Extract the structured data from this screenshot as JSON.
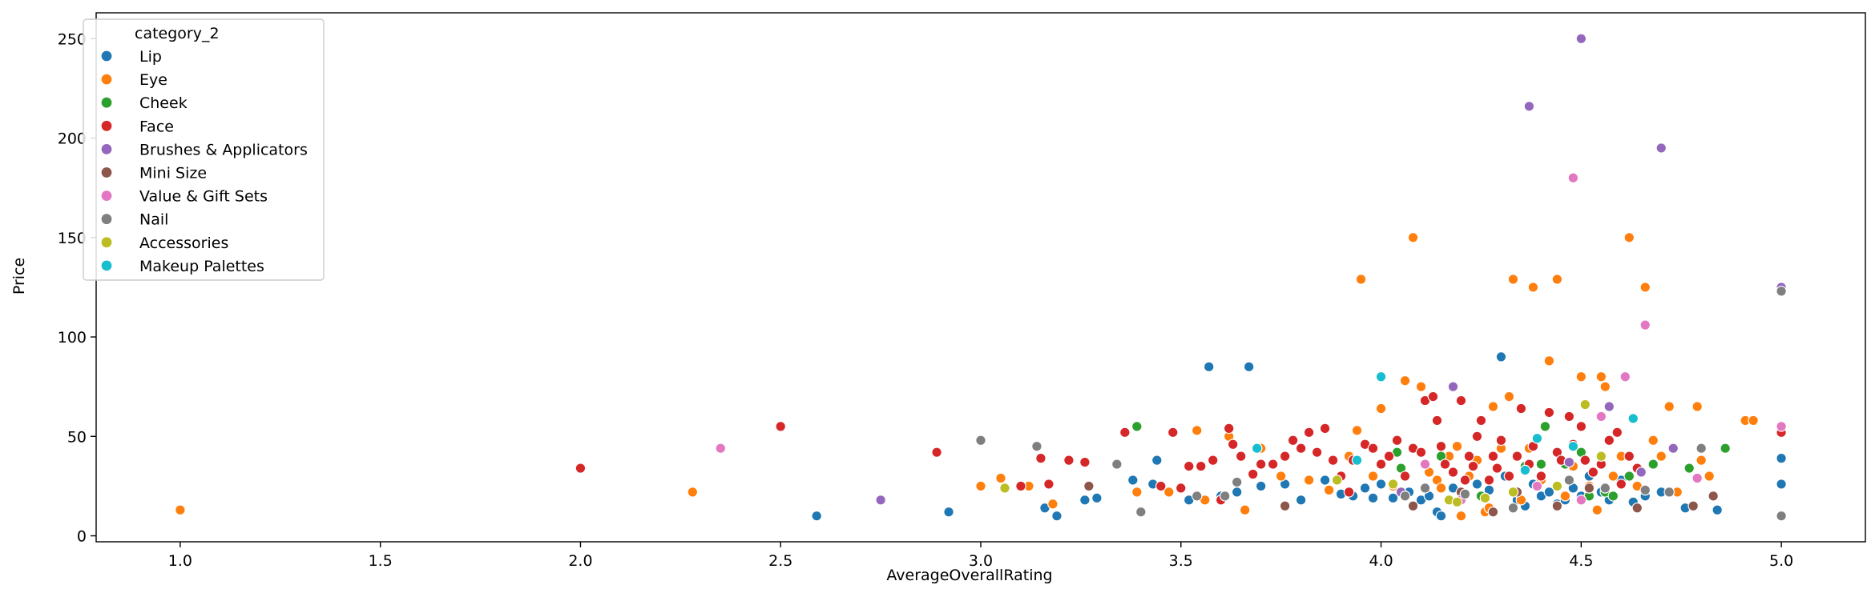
{
  "chart_data": {
    "type": "scatter",
    "title": "",
    "xlabel": "AverageOverallRating",
    "ylabel": "Price",
    "xlim": [
      0.79,
      5.21
    ],
    "ylim": [
      -3,
      263
    ],
    "xticks": [
      "1.0",
      "1.5",
      "2.0",
      "2.5",
      "3.0",
      "3.5",
      "4.0",
      "4.5",
      "5.0"
    ],
    "yticks": [
      "0",
      "50",
      "100",
      "150",
      "200",
      "250"
    ],
    "grid": false,
    "legend": {
      "title": "category_2",
      "placement": "top-left"
    },
    "series": [
      {
        "name": "Lip",
        "color": "#1f77b4",
        "points": [
          [
            2.59,
            10
          ],
          [
            2.92,
            12
          ],
          [
            3.16,
            14
          ],
          [
            3.19,
            10
          ],
          [
            3.26,
            18
          ],
          [
            3.29,
            19
          ],
          [
            3.38,
            28
          ],
          [
            3.43,
            26
          ],
          [
            3.44,
            38
          ],
          [
            3.52,
            18
          ],
          [
            3.57,
            85
          ],
          [
            3.6,
            20
          ],
          [
            3.64,
            22
          ],
          [
            3.67,
            85
          ],
          [
            3.7,
            25
          ],
          [
            3.76,
            26
          ],
          [
            3.8,
            18
          ],
          [
            3.86,
            28
          ],
          [
            3.9,
            21
          ],
          [
            3.93,
            20
          ],
          [
            3.96,
            24
          ],
          [
            3.98,
            19
          ],
          [
            4.0,
            26
          ],
          [
            4.03,
            19
          ],
          [
            4.07,
            22
          ],
          [
            4.1,
            18
          ],
          [
            4.12,
            20
          ],
          [
            4.14,
            12
          ],
          [
            4.15,
            10
          ],
          [
            4.18,
            24
          ],
          [
            4.21,
            21
          ],
          [
            4.24,
            26
          ],
          [
            4.27,
            23
          ],
          [
            4.3,
            90
          ],
          [
            4.31,
            30
          ],
          [
            4.34,
            18
          ],
          [
            4.36,
            15
          ],
          [
            4.38,
            26
          ],
          [
            4.4,
            20
          ],
          [
            4.42,
            22
          ],
          [
            4.44,
            16
          ],
          [
            4.46,
            18
          ],
          [
            4.48,
            24
          ],
          [
            4.5,
            20
          ],
          [
            4.52,
            30
          ],
          [
            4.55,
            22
          ],
          [
            4.57,
            18
          ],
          [
            4.6,
            28
          ],
          [
            4.63,
            17
          ],
          [
            4.66,
            20
          ],
          [
            4.7,
            22
          ],
          [
            4.76,
            14
          ],
          [
            4.84,
            13
          ],
          [
            5.0,
            39
          ],
          [
            5.0,
            26
          ]
        ]
      },
      {
        "name": "Eye",
        "color": "#ff7f0e",
        "points": [
          [
            1.0,
            13
          ],
          [
            2.28,
            22
          ],
          [
            3.0,
            25
          ],
          [
            3.05,
            29
          ],
          [
            3.12,
            25
          ],
          [
            3.18,
            16
          ],
          [
            3.39,
            22
          ],
          [
            3.47,
            22
          ],
          [
            3.54,
            53
          ],
          [
            3.56,
            18
          ],
          [
            3.62,
            50
          ],
          [
            3.66,
            13
          ],
          [
            3.7,
            44
          ],
          [
            3.75,
            30
          ],
          [
            3.82,
            28
          ],
          [
            3.87,
            23
          ],
          [
            3.92,
            40
          ],
          [
            3.94,
            53
          ],
          [
            3.95,
            129
          ],
          [
            3.98,
            30
          ],
          [
            4.0,
            64
          ],
          [
            4.03,
            25
          ],
          [
            4.06,
            78
          ],
          [
            4.08,
            150
          ],
          [
            4.1,
            75
          ],
          [
            4.12,
            32
          ],
          [
            4.14,
            28
          ],
          [
            4.15,
            24
          ],
          [
            4.17,
            40
          ],
          [
            4.19,
            45
          ],
          [
            4.2,
            10
          ],
          [
            4.22,
            30
          ],
          [
            4.24,
            38
          ],
          [
            4.26,
            12
          ],
          [
            4.27,
            14
          ],
          [
            4.28,
            65
          ],
          [
            4.3,
            44
          ],
          [
            4.32,
            70
          ],
          [
            4.33,
            129
          ],
          [
            4.35,
            18
          ],
          [
            4.37,
            44
          ],
          [
            4.38,
            125
          ],
          [
            4.4,
            28
          ],
          [
            4.42,
            88
          ],
          [
            4.44,
            129
          ],
          [
            4.46,
            20
          ],
          [
            4.48,
            35
          ],
          [
            4.5,
            80
          ],
          [
            4.52,
            25
          ],
          [
            4.54,
            13
          ],
          [
            4.55,
            80
          ],
          [
            4.56,
            75
          ],
          [
            4.58,
            30
          ],
          [
            4.6,
            40
          ],
          [
            4.62,
            150
          ],
          [
            4.64,
            25
          ],
          [
            4.66,
            125
          ],
          [
            4.68,
            48
          ],
          [
            4.7,
            40
          ],
          [
            4.72,
            65
          ],
          [
            4.74,
            22
          ],
          [
            4.79,
            65
          ],
          [
            4.8,
            38
          ],
          [
            4.82,
            30
          ],
          [
            4.91,
            58
          ],
          [
            4.93,
            58
          ]
        ]
      },
      {
        "name": "Cheek",
        "color": "#2ca02c",
        "points": [
          [
            3.39,
            55
          ],
          [
            4.04,
            42
          ],
          [
            4.05,
            34
          ],
          [
            4.15,
            40
          ],
          [
            4.25,
            20
          ],
          [
            4.36,
            35
          ],
          [
            4.4,
            36
          ],
          [
            4.41,
            55
          ],
          [
            4.46,
            36
          ],
          [
            4.5,
            42
          ],
          [
            4.52,
            20
          ],
          [
            4.56,
            22
          ],
          [
            4.58,
            20
          ],
          [
            4.62,
            30
          ],
          [
            4.68,
            36
          ],
          [
            4.77,
            34
          ],
          [
            4.86,
            44
          ]
        ]
      },
      {
        "name": "Face",
        "color": "#d62728",
        "points": [
          [
            2.0,
            34
          ],
          [
            2.5,
            55
          ],
          [
            2.89,
            42
          ],
          [
            3.1,
            25
          ],
          [
            3.15,
            39
          ],
          [
            3.17,
            26
          ],
          [
            3.22,
            38
          ],
          [
            3.26,
            37
          ],
          [
            3.36,
            52
          ],
          [
            3.45,
            25
          ],
          [
            3.48,
            52
          ],
          [
            3.5,
            24
          ],
          [
            3.52,
            35
          ],
          [
            3.55,
            35
          ],
          [
            3.58,
            38
          ],
          [
            3.6,
            18
          ],
          [
            3.62,
            54
          ],
          [
            3.63,
            46
          ],
          [
            3.65,
            40
          ],
          [
            3.68,
            31
          ],
          [
            3.7,
            36
          ],
          [
            3.73,
            36
          ],
          [
            3.76,
            40
          ],
          [
            3.78,
            48
          ],
          [
            3.8,
            44
          ],
          [
            3.82,
            52
          ],
          [
            3.84,
            42
          ],
          [
            3.86,
            54
          ],
          [
            3.88,
            38
          ],
          [
            3.9,
            30
          ],
          [
            3.92,
            22
          ],
          [
            3.93,
            38
          ],
          [
            3.96,
            46
          ],
          [
            3.98,
            44
          ],
          [
            4.0,
            36
          ],
          [
            4.02,
            40
          ],
          [
            4.04,
            48
          ],
          [
            4.06,
            30
          ],
          [
            4.08,
            44
          ],
          [
            4.1,
            42
          ],
          [
            4.11,
            68
          ],
          [
            4.13,
            70
          ],
          [
            4.14,
            58
          ],
          [
            4.15,
            45
          ],
          [
            4.16,
            36
          ],
          [
            4.18,
            32
          ],
          [
            4.2,
            68
          ],
          [
            4.21,
            28
          ],
          [
            4.22,
            40
          ],
          [
            4.23,
            35
          ],
          [
            4.24,
            50
          ],
          [
            4.25,
            58
          ],
          [
            4.27,
            28
          ],
          [
            4.28,
            40
          ],
          [
            4.29,
            34
          ],
          [
            4.3,
            48
          ],
          [
            4.32,
            30
          ],
          [
            4.34,
            40
          ],
          [
            4.35,
            64
          ],
          [
            4.37,
            36
          ],
          [
            4.38,
            45
          ],
          [
            4.4,
            30
          ],
          [
            4.42,
            62
          ],
          [
            4.44,
            42
          ],
          [
            4.45,
            38
          ],
          [
            4.47,
            60
          ],
          [
            4.48,
            46
          ],
          [
            4.5,
            55
          ],
          [
            4.51,
            38
          ],
          [
            4.53,
            32
          ],
          [
            4.55,
            36
          ],
          [
            4.57,
            48
          ],
          [
            4.59,
            52
          ],
          [
            4.6,
            26
          ],
          [
            4.62,
            40
          ],
          [
            4.64,
            34
          ],
          [
            5.0,
            52
          ]
        ]
      },
      {
        "name": "Brushes & Applicators",
        "color": "#9467bd",
        "points": [
          [
            2.75,
            18
          ],
          [
            4.05,
            22
          ],
          [
            4.18,
            75
          ],
          [
            4.37,
            216
          ],
          [
            4.47,
            37
          ],
          [
            4.5,
            250
          ],
          [
            4.57,
            65
          ],
          [
            4.65,
            32
          ],
          [
            4.7,
            195
          ],
          [
            4.73,
            44
          ],
          [
            5.0,
            125
          ]
        ]
      },
      {
        "name": "Mini Size",
        "color": "#8c564b",
        "points": [
          [
            3.27,
            25
          ],
          [
            3.76,
            15
          ],
          [
            4.08,
            15
          ],
          [
            4.2,
            22
          ],
          [
            4.28,
            12
          ],
          [
            4.34,
            22
          ],
          [
            4.44,
            15
          ],
          [
            4.52,
            24
          ],
          [
            4.64,
            14
          ],
          [
            4.78,
            15
          ],
          [
            4.83,
            20
          ]
        ]
      },
      {
        "name": "Value & Gift Sets",
        "color": "#e377c2",
        "points": [
          [
            2.35,
            44
          ],
          [
            4.11,
            36
          ],
          [
            4.2,
            18
          ],
          [
            4.39,
            25
          ],
          [
            4.48,
            180
          ],
          [
            4.5,
            18
          ],
          [
            4.55,
            60
          ],
          [
            4.61,
            80
          ],
          [
            4.66,
            106
          ],
          [
            4.79,
            29
          ],
          [
            5.0,
            55
          ]
        ]
      },
      {
        "name": "Nail",
        "color": "#7f7f7f",
        "points": [
          [
            3.0,
            48
          ],
          [
            3.14,
            45
          ],
          [
            3.34,
            36
          ],
          [
            3.4,
            12
          ],
          [
            3.54,
            20
          ],
          [
            3.61,
            20
          ],
          [
            3.64,
            27
          ],
          [
            4.06,
            20
          ],
          [
            4.11,
            24
          ],
          [
            4.21,
            21
          ],
          [
            4.33,
            14
          ],
          [
            4.47,
            28
          ],
          [
            4.56,
            24
          ],
          [
            4.66,
            23
          ],
          [
            4.72,
            22
          ],
          [
            4.8,
            44
          ],
          [
            5.0,
            123
          ],
          [
            5.0,
            10
          ]
        ]
      },
      {
        "name": "Accessories",
        "color": "#bcbd22",
        "points": [
          [
            3.06,
            24
          ],
          [
            3.89,
            28
          ],
          [
            4.03,
            26
          ],
          [
            4.17,
            18
          ],
          [
            4.19,
            17
          ],
          [
            4.26,
            19
          ],
          [
            4.33,
            22
          ],
          [
            4.44,
            25
          ],
          [
            4.51,
            66
          ],
          [
            4.55,
            40
          ]
        ]
      },
      {
        "name": "Makeup Palettes",
        "color": "#17becf",
        "points": [
          [
            3.69,
            44
          ],
          [
            3.94,
            38
          ],
          [
            4.0,
            80
          ],
          [
            4.36,
            33
          ],
          [
            4.39,
            49
          ],
          [
            4.48,
            45
          ],
          [
            4.63,
            59
          ]
        ]
      }
    ]
  }
}
